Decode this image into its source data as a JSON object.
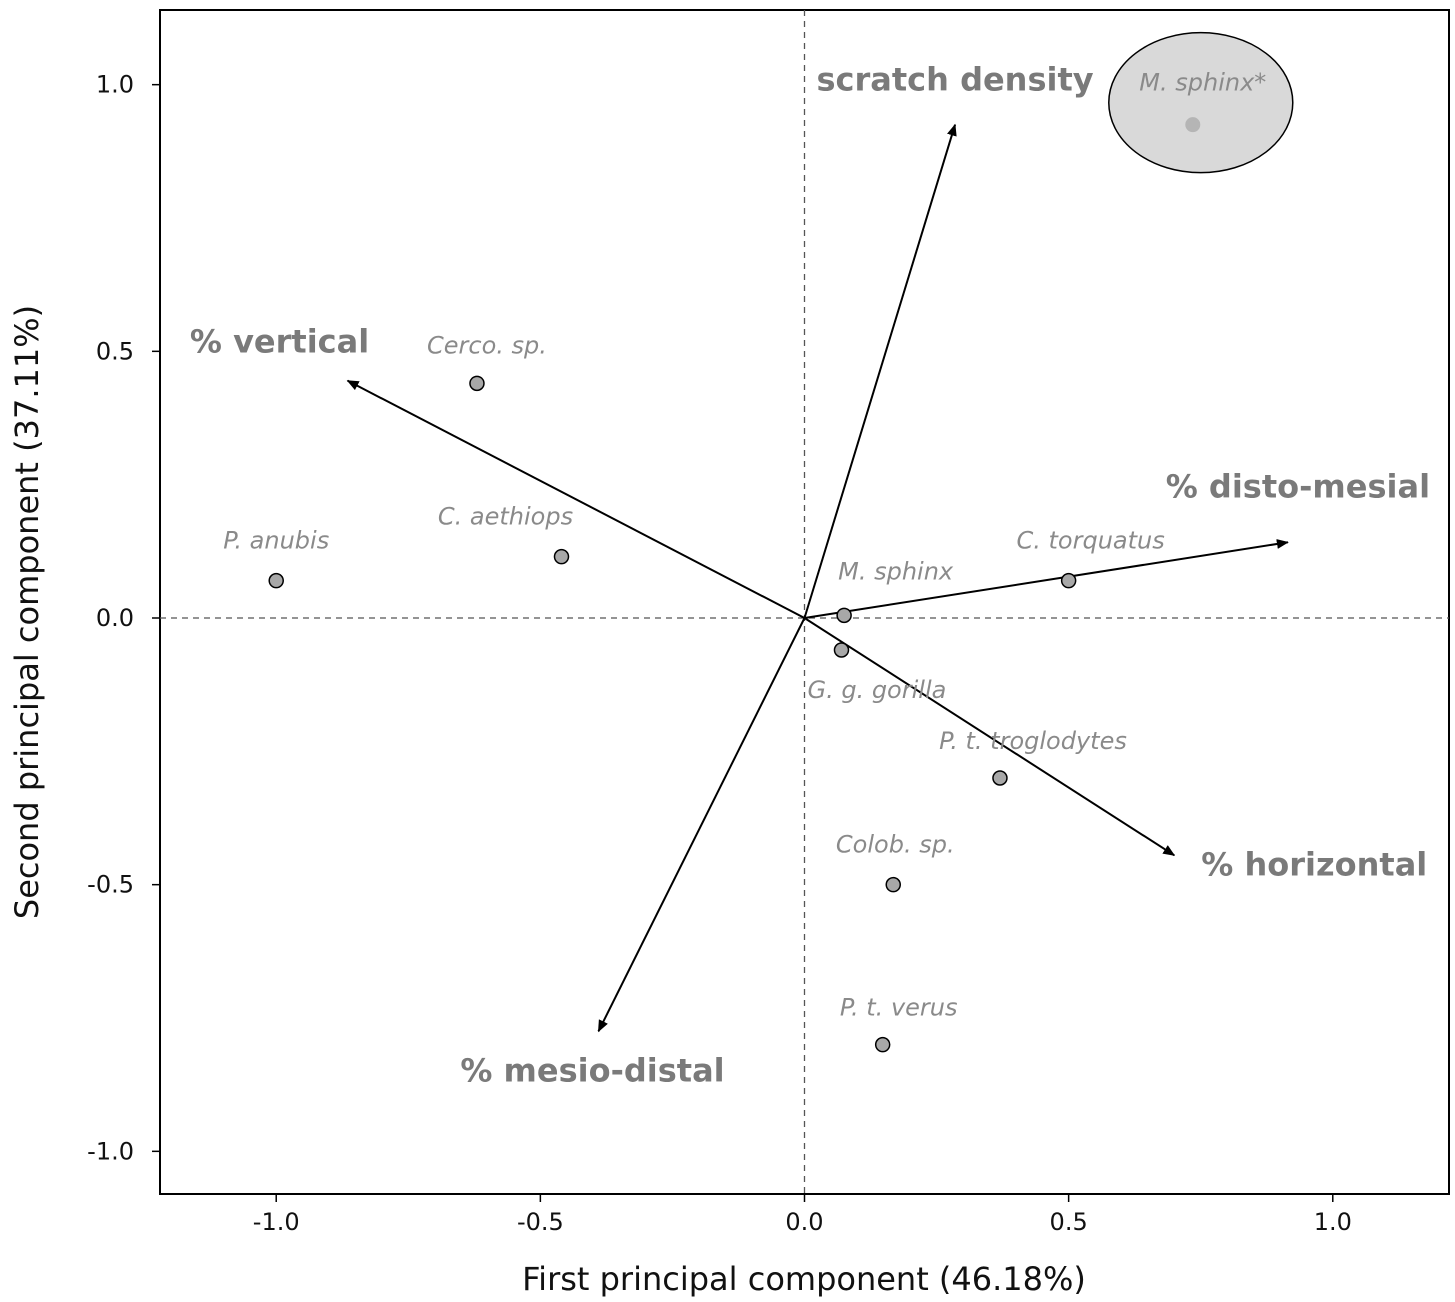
{
  "chart_data": {
    "type": "scatter",
    "xlabel": "First principal component (46.18%)",
    "ylabel": "Second principal component (37.11%)",
    "xlim": [
      -1.22,
      1.22
    ],
    "ylim": [
      -1.08,
      1.14
    ],
    "x_ticks": [
      {
        "value": -1.0,
        "label": "-1.0"
      },
      {
        "value": -0.5,
        "label": "-0.5"
      },
      {
        "value": 0.0,
        "label": "0.0"
      },
      {
        "value": 0.5,
        "label": "0.5"
      },
      {
        "value": 1.0,
        "label": "1.0"
      }
    ],
    "y_ticks": [
      {
        "value": 1.0,
        "label": "1.0"
      },
      {
        "value": 0.5,
        "label": "0.5"
      },
      {
        "value": 0.0,
        "label": "0.0"
      },
      {
        "value": -0.5,
        "label": "-0.5"
      },
      {
        "value": -1.0,
        "label": "-1.0"
      }
    ],
    "grid": false,
    "reference_lines": {
      "x": 0,
      "y": 0,
      "style": "dashed"
    },
    "points": [
      {
        "label": "P. anubis",
        "x": -1.0,
        "y": 0.07
      },
      {
        "label": "Cerco. sp.",
        "x": -0.62,
        "y": 0.44
      },
      {
        "label": "C. aethiops",
        "x": -0.46,
        "y": 0.115
      },
      {
        "label": "M. sphinx",
        "x": 0.075,
        "y": 0.005
      },
      {
        "label": "G. g. gorilla",
        "x": 0.07,
        "y": -0.06
      },
      {
        "label": "C. torquatus",
        "x": 0.5,
        "y": 0.07
      },
      {
        "label": "P. t. troglodytes",
        "x": 0.37,
        "y": -0.3
      },
      {
        "label": "Colob. sp.",
        "x": 0.168,
        "y": -0.5
      },
      {
        "label": "P. t. verus",
        "x": 0.148,
        "y": -0.8
      }
    ],
    "highlight": {
      "label": "M. sphinx*",
      "x": 0.735,
      "y": 0.925
    },
    "loadings": [
      {
        "label": "scratch density",
        "x": 0.285,
        "y": 0.925
      },
      {
        "label": "% vertical",
        "x": -0.865,
        "y": 0.445
      },
      {
        "label": "% disto-mesial",
        "x": 0.915,
        "y": 0.142
      },
      {
        "label": "% horizontal",
        "x": 0.7,
        "y": -0.445
      },
      {
        "label": "% mesio-distal",
        "x": -0.39,
        "y": -0.775
      }
    ],
    "colors": {
      "point_fill": "#a8a8a8",
      "highlight_fill": "#d9d9d9",
      "label_text": "#8a8a8a",
      "loading_text": "#7a7a7a"
    }
  }
}
